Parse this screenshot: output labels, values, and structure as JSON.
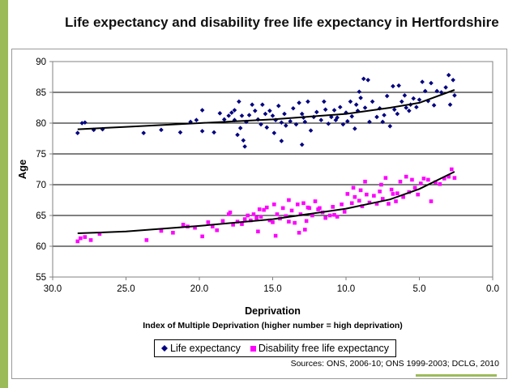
{
  "slide": {
    "accent_color": "#9bbb59"
  },
  "chart_data": {
    "type": "scatter",
    "title": "Life expectancy and disability free life expectancy in Hertfordshire",
    "xlabel": "Deprivation",
    "xlabel_sub": "Index of Multiple Deprivation (higher number = high deprivation)",
    "ylabel": "Age",
    "xlim": [
      30,
      0
    ],
    "x_reversed": true,
    "ylim": [
      55,
      90
    ],
    "x_ticks": [
      30,
      25,
      20,
      15,
      10,
      5,
      0
    ],
    "x_tick_labels": [
      "30.0",
      "25.0",
      "20.0",
      "15.0",
      "10.0",
      "5.0",
      "0.0"
    ],
    "y_ticks": [
      55,
      60,
      65,
      70,
      75,
      80,
      85,
      90
    ],
    "y_tick_labels": [
      "55",
      "60",
      "65",
      "70",
      "75",
      "80",
      "85",
      "90"
    ],
    "grid": "horizontal",
    "legend_position": "bottom",
    "source": "Sources: ONS, 2006-10; ONS 1999-2003; DCLG, 2010",
    "series": [
      {
        "name": "Life expectancy",
        "marker": "diamond",
        "color": "#000080",
        "trendline": [
          [
            28.3,
            79.0
          ],
          [
            25,
            79.4
          ],
          [
            20,
            80.0
          ],
          [
            15,
            80.6
          ],
          [
            10,
            81.5
          ],
          [
            7,
            82.5
          ],
          [
            5,
            83.3
          ],
          [
            2.6,
            85.4
          ]
        ],
        "points": [
          [
            28.3,
            78.4
          ],
          [
            28.0,
            80.0
          ],
          [
            27.8,
            80.1
          ],
          [
            27.2,
            78.9
          ],
          [
            26.6,
            79.0
          ],
          [
            23.8,
            78.4
          ],
          [
            22.6,
            78.9
          ],
          [
            21.3,
            78.5
          ],
          [
            20.6,
            80.2
          ],
          [
            20.2,
            80.5
          ],
          [
            19.8,
            82.1
          ],
          [
            19.8,
            78.7
          ],
          [
            19.0,
            78.5
          ],
          [
            18.6,
            81.6
          ],
          [
            18.3,
            80.6
          ],
          [
            18.0,
            81.2
          ],
          [
            17.8,
            81.7
          ],
          [
            17.6,
            82.1
          ],
          [
            17.6,
            80.5
          ],
          [
            17.3,
            83.5
          ],
          [
            17.1,
            81.2
          ],
          [
            16.8,
            80.2
          ],
          [
            16.6,
            81.3
          ],
          [
            16.4,
            83.0
          ],
          [
            16.2,
            82.0
          ],
          [
            16.0,
            80.6
          ],
          [
            15.8,
            79.8
          ],
          [
            15.7,
            83.0
          ],
          [
            15.5,
            81.5
          ],
          [
            15.4,
            79.3
          ],
          [
            15.2,
            82.0
          ],
          [
            15.0,
            81.2
          ],
          [
            14.8,
            80.5
          ],
          [
            14.6,
            82.8
          ],
          [
            14.4,
            80.1
          ],
          [
            14.2,
            81.5
          ],
          [
            14.1,
            79.6
          ],
          [
            13.8,
            80.3
          ],
          [
            13.6,
            82.4
          ],
          [
            13.4,
            79.8
          ],
          [
            13.2,
            83.3
          ],
          [
            13.0,
            81.5
          ],
          [
            12.8,
            80.2
          ],
          [
            12.6,
            83.5
          ],
          [
            12.4,
            78.8
          ],
          [
            12.2,
            81.0
          ],
          [
            12.0,
            81.8
          ],
          [
            11.7,
            80.5
          ],
          [
            11.4,
            82.2
          ],
          [
            11.2,
            79.9
          ],
          [
            11.0,
            81.0
          ],
          [
            10.7,
            80.5
          ],
          [
            10.4,
            82.6
          ],
          [
            10.2,
            79.8
          ],
          [
            10.0,
            81.7
          ],
          [
            9.7,
            83.5
          ],
          [
            9.4,
            79.1
          ],
          [
            9.2,
            82.0
          ],
          [
            9.0,
            84.1
          ],
          [
            8.7,
            82.5
          ],
          [
            8.4,
            80.2
          ],
          [
            8.2,
            83.5
          ],
          [
            7.9,
            81.0
          ],
          [
            7.7,
            82.4
          ],
          [
            7.5,
            80.2
          ],
          [
            7.2,
            84.4
          ],
          [
            7.0,
            79.5
          ],
          [
            6.7,
            82.2
          ],
          [
            6.5,
            81.5
          ],
          [
            6.2,
            83.5
          ],
          [
            6.0,
            84.5
          ],
          [
            5.7,
            82.0
          ],
          [
            5.4,
            84.0
          ],
          [
            5.2,
            82.6
          ],
          [
            5.0,
            83.8
          ],
          [
            4.8,
            86.7
          ],
          [
            4.6,
            85.2
          ],
          [
            4.4,
            83.6
          ],
          [
            4.2,
            86.5
          ],
          [
            4.0,
            82.9
          ],
          [
            3.8,
            85.2
          ],
          [
            3.5,
            85.0
          ],
          [
            3.2,
            85.8
          ],
          [
            3.0,
            87.8
          ],
          [
            2.9,
            83.0
          ],
          [
            2.7,
            87.0
          ],
          [
            2.6,
            84.5
          ],
          [
            8.8,
            87.2
          ],
          [
            8.5,
            87.0
          ],
          [
            6.8,
            86.0
          ],
          [
            6.4,
            86.1
          ],
          [
            17.0,
            77.2
          ],
          [
            16.9,
            76.2
          ],
          [
            17.4,
            78.1
          ],
          [
            17.2,
            79.2
          ],
          [
            14.9,
            78.4
          ],
          [
            14.4,
            77.1
          ],
          [
            13.0,
            76.5
          ],
          [
            12.9,
            80.9
          ],
          [
            11.5,
            83.5
          ],
          [
            10.8,
            82.1
          ],
          [
            9.9,
            80.3
          ],
          [
            9.6,
            81.1
          ],
          [
            10.6,
            80.9
          ],
          [
            9.1,
            85.1
          ],
          [
            9.3,
            83.0
          ],
          [
            7.4,
            81.3
          ],
          [
            5.9,
            82.5
          ],
          [
            5.6,
            83.0
          ]
        ]
      },
      {
        "name": "Disability free life expectancy",
        "marker": "square",
        "color": "#ff00ff",
        "trendline": [
          [
            28.3,
            62.1
          ],
          [
            25,
            62.4
          ],
          [
            20,
            63.3
          ],
          [
            15,
            64.4
          ],
          [
            10,
            66.1
          ],
          [
            7,
            67.6
          ],
          [
            5,
            69.3
          ],
          [
            2.6,
            72.1
          ]
        ],
        "points": [
          [
            28.3,
            60.8
          ],
          [
            28.1,
            61.3
          ],
          [
            27.8,
            61.5
          ],
          [
            27.4,
            61.0
          ],
          [
            26.8,
            62.0
          ],
          [
            23.6,
            61.0
          ],
          [
            22.6,
            62.5
          ],
          [
            21.8,
            62.2
          ],
          [
            21.1,
            63.5
          ],
          [
            20.8,
            63.2
          ],
          [
            20.3,
            63.0
          ],
          [
            19.8,
            61.6
          ],
          [
            19.4,
            63.9
          ],
          [
            19.1,
            63.2
          ],
          [
            18.8,
            62.6
          ],
          [
            18.4,
            64.1
          ],
          [
            18.0,
            65.2
          ],
          [
            17.9,
            65.5
          ],
          [
            17.7,
            63.5
          ],
          [
            17.4,
            64.0
          ],
          [
            17.1,
            63.6
          ],
          [
            16.9,
            64.4
          ],
          [
            16.7,
            65.0
          ],
          [
            16.5,
            64.2
          ],
          [
            16.3,
            65.2
          ],
          [
            16.1,
            64.6
          ],
          [
            15.9,
            66.0
          ],
          [
            15.8,
            64.8
          ],
          [
            15.6,
            65.9
          ],
          [
            15.4,
            66.3
          ],
          [
            15.2,
            64.2
          ],
          [
            15.0,
            63.9
          ],
          [
            14.9,
            66.8
          ],
          [
            14.7,
            65.2
          ],
          [
            14.5,
            64.5
          ],
          [
            14.3,
            66.2
          ],
          [
            14.1,
            64.9
          ],
          [
            13.9,
            64.0
          ],
          [
            13.7,
            65.8
          ],
          [
            13.5,
            63.8
          ],
          [
            13.3,
            66.8
          ],
          [
            13.1,
            65.2
          ],
          [
            12.9,
            67.0
          ],
          [
            12.7,
            64.1
          ],
          [
            12.5,
            66.2
          ],
          [
            12.3,
            65.0
          ],
          [
            12.1,
            67.3
          ],
          [
            11.9,
            66.0
          ],
          [
            11.6,
            65.5
          ],
          [
            11.4,
            64.6
          ],
          [
            11.1,
            65.0
          ],
          [
            10.9,
            66.4
          ],
          [
            10.6,
            64.8
          ],
          [
            10.3,
            66.8
          ],
          [
            10.1,
            65.6
          ],
          [
            9.9,
            68.5
          ],
          [
            9.6,
            67.0
          ],
          [
            9.4,
            68.0
          ],
          [
            9.1,
            67.4
          ],
          [
            8.9,
            66.5
          ],
          [
            8.6,
            68.4
          ],
          [
            8.4,
            67.1
          ],
          [
            8.1,
            68.2
          ],
          [
            7.9,
            66.9
          ],
          [
            7.7,
            68.9
          ],
          [
            7.5,
            67.7
          ],
          [
            7.3,
            71.1
          ],
          [
            7.1,
            66.9
          ],
          [
            6.8,
            68.5
          ],
          [
            6.6,
            67.3
          ],
          [
            6.3,
            70.5
          ],
          [
            6.1,
            68.0
          ],
          [
            5.9,
            71.3
          ],
          [
            5.7,
            68.8
          ],
          [
            5.5,
            70.8
          ],
          [
            5.3,
            69.5
          ],
          [
            5.1,
            68.4
          ],
          [
            4.9,
            70.2
          ],
          [
            4.7,
            71.0
          ],
          [
            4.4,
            70.8
          ],
          [
            4.2,
            67.3
          ],
          [
            3.9,
            70.4
          ],
          [
            3.6,
            70.1
          ],
          [
            3.3,
            71.0
          ],
          [
            3.0,
            71.3
          ],
          [
            2.8,
            72.5
          ],
          [
            2.6,
            71.1
          ],
          [
            12.8,
            62.7
          ],
          [
            13.2,
            62.2
          ],
          [
            14.8,
            61.7
          ],
          [
            16.0,
            62.4
          ],
          [
            13.9,
            67.5
          ],
          [
            12.6,
            66.3
          ],
          [
            11.8,
            66.2
          ],
          [
            10.8,
            65.1
          ],
          [
            9.5,
            69.5
          ],
          [
            9.0,
            69.1
          ],
          [
            8.7,
            70.5
          ],
          [
            7.6,
            70.0
          ],
          [
            6.5,
            68.6
          ],
          [
            6.9,
            69.2
          ]
        ]
      }
    ]
  }
}
